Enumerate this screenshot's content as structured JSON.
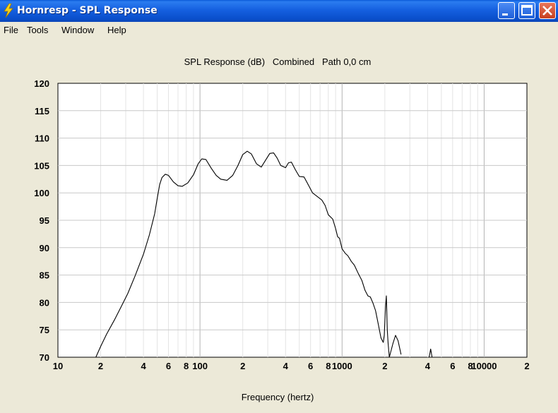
{
  "window": {
    "title": "Hornresp - SPL Response",
    "icon": "lightning-bolt-icon",
    "controls": [
      "minimize-icon",
      "maximize-icon",
      "close-icon"
    ]
  },
  "menu": {
    "items": [
      "File",
      "Tools",
      "Window",
      "Help"
    ]
  },
  "chart_data": {
    "type": "line",
    "title": "SPL Response (dB)   Combined   Path 0,0 cm",
    "xlabel": "Frequency (hertz)",
    "ylabel": "",
    "x_scale": "log",
    "xlim": [
      10,
      20000
    ],
    "ylim": [
      70,
      120
    ],
    "y_ticks": [
      120,
      115,
      110,
      105,
      100,
      95,
      90,
      85,
      80,
      75,
      70
    ],
    "x_tick_labels": [
      {
        "x": 10,
        "label": "10"
      },
      {
        "x": 20,
        "label": "2"
      },
      {
        "x": 40,
        "label": "4"
      },
      {
        "x": 60,
        "label": "6"
      },
      {
        "x": 80,
        "label": "8"
      },
      {
        "x": 100,
        "label": "100"
      },
      {
        "x": 200,
        "label": "2"
      },
      {
        "x": 400,
        "label": "4"
      },
      {
        "x": 600,
        "label": "6"
      },
      {
        "x": 800,
        "label": "8"
      },
      {
        "x": 1000,
        "label": "1000"
      },
      {
        "x": 2000,
        "label": "2"
      },
      {
        "x": 4000,
        "label": "4"
      },
      {
        "x": 6000,
        "label": "6"
      },
      {
        "x": 8000,
        "label": "8"
      },
      {
        "x": 10000,
        "label": "10000"
      },
      {
        "x": 20000,
        "label": "2"
      }
    ],
    "grid": true,
    "series": [
      {
        "name": "",
        "points": [
          [
            18.5,
            70
          ],
          [
            20,
            72
          ],
          [
            22,
            74.2
          ],
          [
            25,
            76.8
          ],
          [
            28,
            79.3
          ],
          [
            31,
            81.6
          ],
          [
            35,
            84.9
          ],
          [
            40,
            88.8
          ],
          [
            44,
            92.3
          ],
          [
            48,
            96.2
          ],
          [
            50,
            99
          ],
          [
            52,
            101.5
          ],
          [
            54,
            102.8
          ],
          [
            57,
            103.4
          ],
          [
            60,
            103.2
          ],
          [
            65,
            102
          ],
          [
            70,
            101.3
          ],
          [
            75,
            101.2
          ],
          [
            82,
            101.8
          ],
          [
            90,
            103.3
          ],
          [
            97,
            105.3
          ],
          [
            103,
            106.2
          ],
          [
            110,
            106.1
          ],
          [
            120,
            104.5
          ],
          [
            130,
            103.2
          ],
          [
            140,
            102.5
          ],
          [
            155,
            102.3
          ],
          [
            170,
            103.2
          ],
          [
            185,
            105
          ],
          [
            200,
            107
          ],
          [
            215,
            107.6
          ],
          [
            230,
            107.1
          ],
          [
            250,
            105.3
          ],
          [
            270,
            104.7
          ],
          [
            290,
            106
          ],
          [
            310,
            107.2
          ],
          [
            330,
            107.3
          ],
          [
            350,
            106.3
          ],
          [
            370,
            105
          ],
          [
            400,
            104.6
          ],
          [
            420,
            105.5
          ],
          [
            440,
            105.6
          ],
          [
            470,
            104.2
          ],
          [
            500,
            103
          ],
          [
            540,
            102.9
          ],
          [
            580,
            101.4
          ],
          [
            620,
            100
          ],
          [
            680,
            99.2
          ],
          [
            720,
            98.7
          ],
          [
            760,
            97.7
          ],
          [
            800,
            96
          ],
          [
            860,
            95.2
          ],
          [
            900,
            93.5
          ],
          [
            930,
            92
          ],
          [
            960,
            91.7
          ],
          [
            1000,
            89.8
          ],
          [
            1050,
            89
          ],
          [
            1100,
            88.5
          ],
          [
            1160,
            87.5
          ],
          [
            1220,
            86.8
          ],
          [
            1300,
            85.3
          ],
          [
            1380,
            84
          ],
          [
            1450,
            82.2
          ],
          [
            1520,
            81.2
          ],
          [
            1580,
            81
          ],
          [
            1650,
            79.9
          ],
          [
            1720,
            78.5
          ],
          [
            1800,
            76
          ],
          [
            1880,
            73.5
          ],
          [
            1950,
            72.7
          ],
          [
            1980,
            74
          ],
          [
            2020,
            79
          ],
          [
            2050,
            81.2
          ],
          [
            2080,
            75
          ],
          [
            2110,
            72.5
          ],
          [
            2150,
            70
          ],
          [
            2280,
            72.5
          ],
          [
            2380,
            74
          ],
          [
            2480,
            73
          ],
          [
            2600,
            70.5
          ]
        ]
      },
      {
        "name": "",
        "points": [
          [
            4100,
            70
          ],
          [
            4200,
            71.5
          ],
          [
            4300,
            70
          ]
        ]
      }
    ]
  }
}
